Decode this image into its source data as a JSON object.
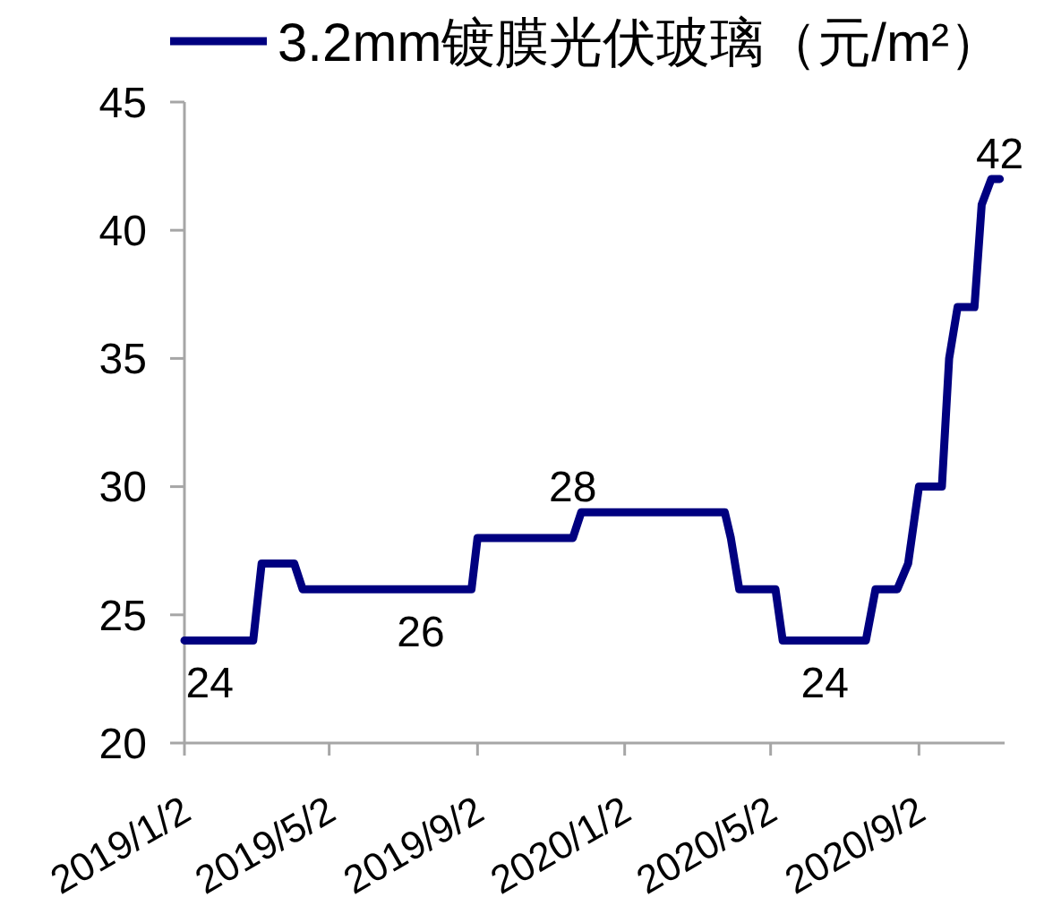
{
  "chart_data": {
    "type": "line",
    "legend": "top",
    "line_style": "solid",
    "x": [
      "2019-01-02",
      "2019-01-23",
      "2019-02-28",
      "2019-03-07",
      "2019-04-03",
      "2019-04-10",
      "2019-07-17",
      "2019-08-28",
      "2019-09-02",
      "2019-11-20",
      "2019-11-27",
      "2020-03-25",
      "2020-03-30",
      "2020-04-06",
      "2020-05-06",
      "2020-05-12",
      "2020-06-16",
      "2020-07-20",
      "2020-07-28",
      "2020-08-15",
      "2020-08-24",
      "2020-09-02",
      "2020-09-21",
      "2020-09-27",
      "2020-10-04",
      "2020-10-18",
      "2020-10-24",
      "2020-11-01",
      "2020-11-08"
    ],
    "series": [
      {
        "name": "3.2mm镀膜光伏玻璃（元/m²）",
        "color": "#000080",
        "values": [
          24,
          24,
          24,
          27,
          27,
          26,
          26,
          26,
          28,
          28,
          29,
          29,
          28,
          26,
          26,
          24,
          24,
          24,
          26,
          26,
          27,
          30,
          30,
          35,
          37,
          37,
          41,
          42,
          42
        ],
        "value_labels": [
          null,
          "24",
          null,
          null,
          null,
          null,
          "26",
          null,
          null,
          "28",
          null,
          null,
          null,
          null,
          null,
          null,
          "24",
          null,
          null,
          null,
          null,
          null,
          null,
          null,
          null,
          null,
          null,
          null,
          "42"
        ]
      }
    ],
    "xlim": [
      "2019-01-02",
      "2020-11-12"
    ],
    "xticks": [
      {
        "value": "2019-01-02",
        "label": "2019/1/2"
      },
      {
        "value": "2019-05-02",
        "label": "2019/5/2"
      },
      {
        "value": "2019-09-02",
        "label": "2019/9/2"
      },
      {
        "value": "2020-01-02",
        "label": "2020/1/2"
      },
      {
        "value": "2020-05-02",
        "label": "2020/5/2"
      },
      {
        "value": "2020-09-02",
        "label": "2020/9/2"
      }
    ],
    "ylim": [
      20,
      45
    ],
    "yticks": [
      20,
      25,
      30,
      35,
      40,
      45
    ]
  }
}
